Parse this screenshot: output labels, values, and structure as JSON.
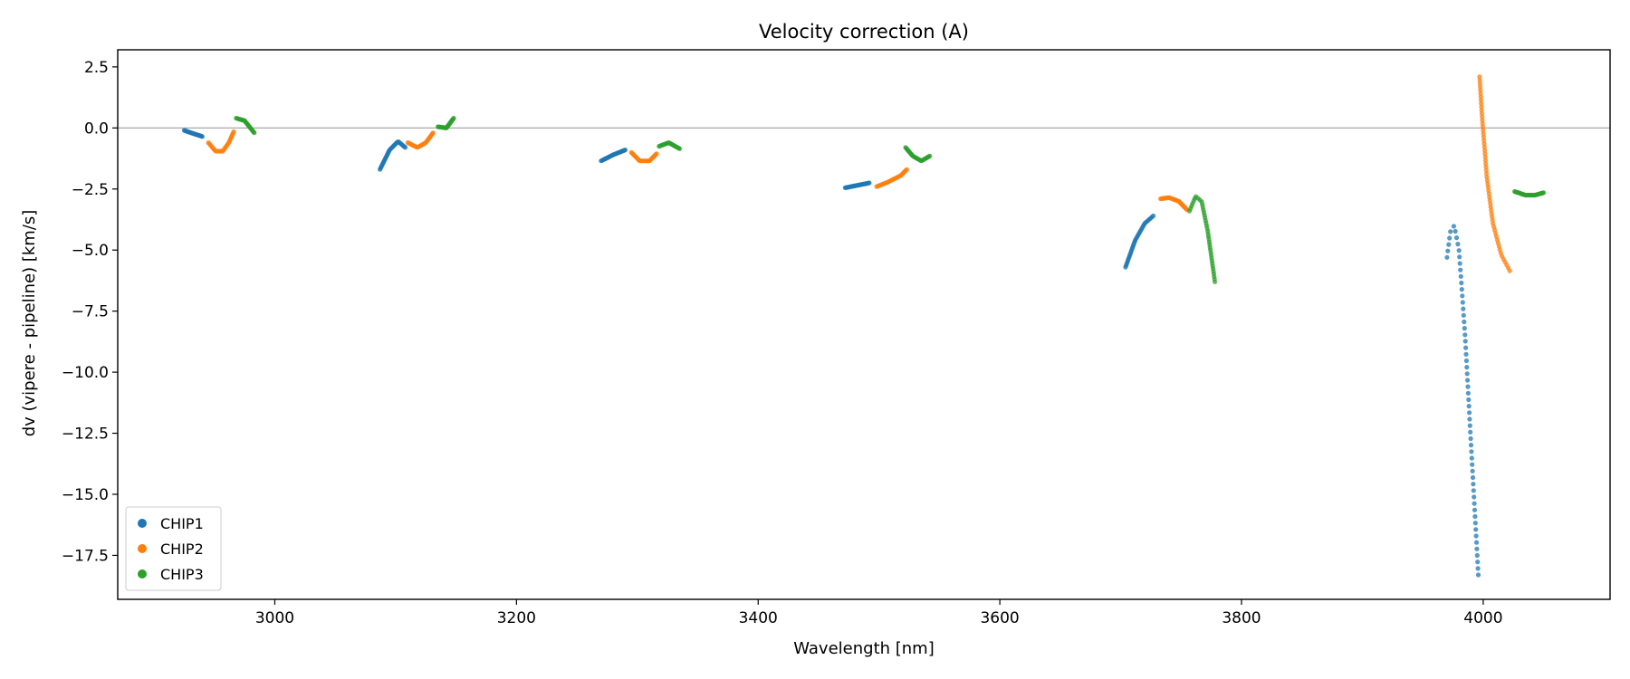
{
  "chart_data": {
    "type": "scatter",
    "title": "Velocity correction (A)",
    "xlabel": "Wavelength [nm]",
    "ylabel": "dv (vipere - pipeline) [km/s]",
    "xlim": [
      2870,
      4105
    ],
    "ylim": [
      -19.3,
      3.2
    ],
    "xticks": [
      3000,
      3200,
      3400,
      3600,
      3800,
      4000
    ],
    "yticks": [
      2.5,
      0.0,
      -2.5,
      -5.0,
      -7.5,
      -10.0,
      -12.5,
      -15.0,
      -17.5
    ],
    "ytick_labels": [
      "2.5",
      "0.0",
      "−2.5",
      "−5.0",
      "−7.5",
      "−10.0",
      "−12.5",
      "−15.0",
      "−17.5"
    ],
    "reference_line": 0,
    "legend_position": "lower-left",
    "colors": {
      "CHIP1": "#1f77b4",
      "CHIP2": "#ff7f0e",
      "CHIP3": "#2ca02c"
    },
    "series": [
      {
        "name": "CHIP1",
        "color": "#1f77b4",
        "segments": [
          {
            "x": [
              2925,
              2932,
              2940
            ],
            "y": [
              -0.1,
              -0.22,
              -0.35
            ],
            "n": 25
          },
          {
            "x": [
              3087,
              3095,
              3102,
              3108
            ],
            "y": [
              -1.7,
              -0.9,
              -0.55,
              -0.8
            ],
            "n": 35
          },
          {
            "x": [
              3270,
              3280,
              3290
            ],
            "y": [
              -1.35,
              -1.1,
              -0.9
            ],
            "n": 30
          },
          {
            "x": [
              3472,
              3482,
              3492
            ],
            "y": [
              -2.45,
              -2.35,
              -2.25
            ],
            "n": 30
          },
          {
            "x": [
              3704,
              3712,
              3720,
              3727
            ],
            "y": [
              -5.7,
              -4.6,
              -3.9,
              -3.6
            ],
            "n": 35
          },
          {
            "x": [
              3970,
              3973,
              3976,
              3980,
              3985,
              3990,
              3996
            ],
            "y": [
              -5.3,
              -4.2,
              -4.0,
              -5.0,
              -8.5,
              -13.0,
              -18.3
            ],
            "n": 60
          }
        ]
      },
      {
        "name": "CHIP2",
        "color": "#ff7f0e",
        "segments": [
          {
            "x": [
              2945,
              2951,
              2957,
              2962,
              2966
            ],
            "y": [
              -0.6,
              -0.95,
              -0.95,
              -0.6,
              -0.15
            ],
            "n": 30
          },
          {
            "x": [
              3110,
              3118,
              3125,
              3131
            ],
            "y": [
              -0.6,
              -0.8,
              -0.6,
              -0.2
            ],
            "n": 30
          },
          {
            "x": [
              3295,
              3302,
              3310,
              3316
            ],
            "y": [
              -1.0,
              -1.35,
              -1.35,
              -1.05
            ],
            "n": 30
          },
          {
            "x": [
              3498,
              3508,
              3518,
              3523
            ],
            "y": [
              -2.4,
              -2.2,
              -1.95,
              -1.7
            ],
            "n": 30
          },
          {
            "x": [
              3733,
              3740,
              3748,
              3755
            ],
            "y": [
              -2.9,
              -2.85,
              -3.0,
              -3.35
            ],
            "n": 35
          },
          {
            "x": [
              3997,
              3999,
              4003,
              4008,
              4015,
              4022
            ],
            "y": [
              2.1,
              0.5,
              -2.0,
              -3.9,
              -5.2,
              -5.85
            ],
            "n": 60
          }
        ]
      },
      {
        "name": "CHIP3",
        "color": "#2ca02c",
        "segments": [
          {
            "x": [
              2968,
              2975,
              2983
            ],
            "y": [
              0.4,
              0.3,
              -0.2
            ],
            "n": 25
          },
          {
            "x": [
              3135,
              3142,
              3148
            ],
            "y": [
              0.05,
              0.0,
              0.4
            ],
            "n": 25
          },
          {
            "x": [
              3318,
              3326,
              3335
            ],
            "y": [
              -0.75,
              -0.6,
              -0.85
            ],
            "n": 25
          },
          {
            "x": [
              3522,
              3528,
              3535,
              3542
            ],
            "y": [
              -0.8,
              -1.15,
              -1.35,
              -1.15
            ],
            "n": 30
          },
          {
            "x": [
              3757,
              3762,
              3767,
              3772,
              3778
            ],
            "y": [
              -3.4,
              -2.8,
              -3.0,
              -4.2,
              -6.3
            ],
            "n": 40
          },
          {
            "x": [
              4026,
              4035,
              4043,
              4050
            ],
            "y": [
              -2.6,
              -2.75,
              -2.75,
              -2.65
            ],
            "n": 35
          }
        ]
      }
    ]
  }
}
